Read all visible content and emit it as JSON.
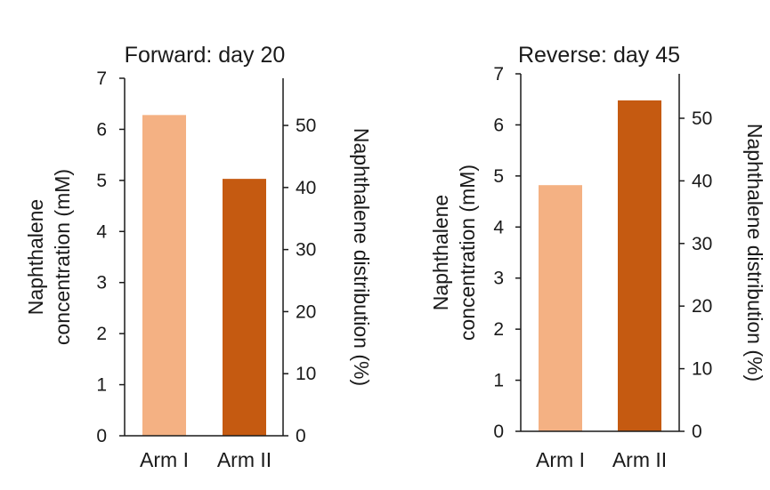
{
  "chart_data": [
    {
      "type": "bar",
      "title": "Forward: day 20",
      "categories": [
        "Arm I",
        "Arm II"
      ],
      "values": [
        6.28,
        5.03
      ],
      "colors": [
        "#F4B183",
        "#C55A11"
      ],
      "ylabel_lines": [
        "Naphthalene",
        "concentration (mM)"
      ],
      "ylabel_right": "Naphthalene distribution (%)",
      "ylim": [
        0,
        7
      ],
      "yticks": [
        "0",
        "1",
        "2",
        "3",
        "4",
        "5",
        "6",
        "7"
      ],
      "y2lim": [
        0,
        57.6
      ],
      "y2ticks": [
        "0",
        "10",
        "20",
        "30",
        "40",
        "50"
      ]
    },
    {
      "type": "bar",
      "title": "Reverse: day 45",
      "categories": [
        "Arm I",
        "Arm II"
      ],
      "values": [
        4.82,
        6.48
      ],
      "colors": [
        "#F4B183",
        "#C55A11"
      ],
      "ylabel_lines": [
        "Naphthalene",
        "concentration (mM)"
      ],
      "ylabel_right": "Naphthalene distribution (%)",
      "ylim": [
        0,
        7
      ],
      "yticks": [
        "0",
        "1",
        "2",
        "3",
        "4",
        "5",
        "6",
        "7"
      ],
      "y2lim": [
        0,
        57.1
      ],
      "y2ticks": [
        "0",
        "10",
        "20",
        "30",
        "40",
        "50"
      ]
    }
  ]
}
